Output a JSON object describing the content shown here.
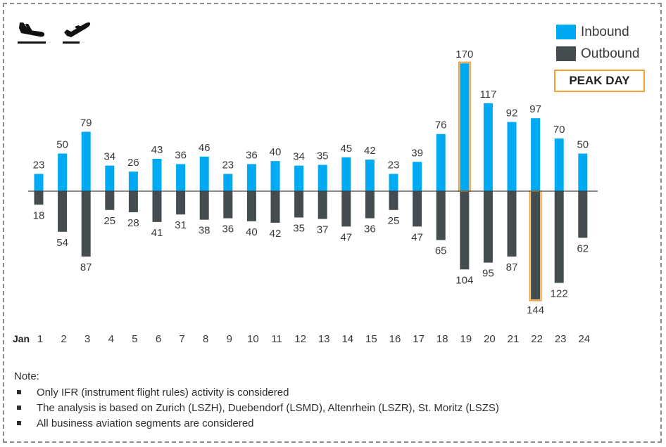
{
  "icons": {
    "arrival": "airplane-arrival-icon",
    "departure": "airplane-departure-icon"
  },
  "legend": {
    "inbound_label": "Inbound",
    "outbound_label": "Outbound"
  },
  "peak_label": "PEAK DAY",
  "notes": {
    "title": "Note:",
    "items": [
      "Only IFR (instrument flight rules) activity is considered",
      "The analysis is based on Zurich (LSZH), Duebendorf (LSMD), Altenrhein (LSZR), St. Moritz (LSZS)",
      "All business aviation segments are considered"
    ]
  },
  "colors": {
    "inbound": "#00AAF3",
    "outbound": "#434D50",
    "peak_outline": "#F5A033",
    "axis": "#404040"
  },
  "chart_data": {
    "type": "bar",
    "x_prefix": "Jan",
    "categories": [
      "1",
      "2",
      "3",
      "4",
      "5",
      "6",
      "7",
      "8",
      "9",
      "10",
      "11",
      "12",
      "13",
      "14",
      "15",
      "16",
      "17",
      "18",
      "19",
      "20",
      "21",
      "22",
      "23",
      "24"
    ],
    "series": [
      {
        "name": "Inbound",
        "values": [
          23,
          50,
          79,
          34,
          26,
          43,
          36,
          46,
          23,
          36,
          40,
          34,
          35,
          45,
          42,
          23,
          39,
          76,
          170,
          117,
          92,
          97,
          70,
          50
        ]
      },
      {
        "name": "Outbound",
        "values": [
          18,
          54,
          87,
          25,
          28,
          41,
          31,
          38,
          36,
          40,
          42,
          35,
          37,
          47,
          36,
          25,
          47,
          65,
          104,
          95,
          87,
          144,
          122,
          62
        ]
      }
    ],
    "peak_days": {
      "Inbound": "19",
      "Outbound": "22"
    },
    "legend_position": "top-right",
    "grid": false
  }
}
